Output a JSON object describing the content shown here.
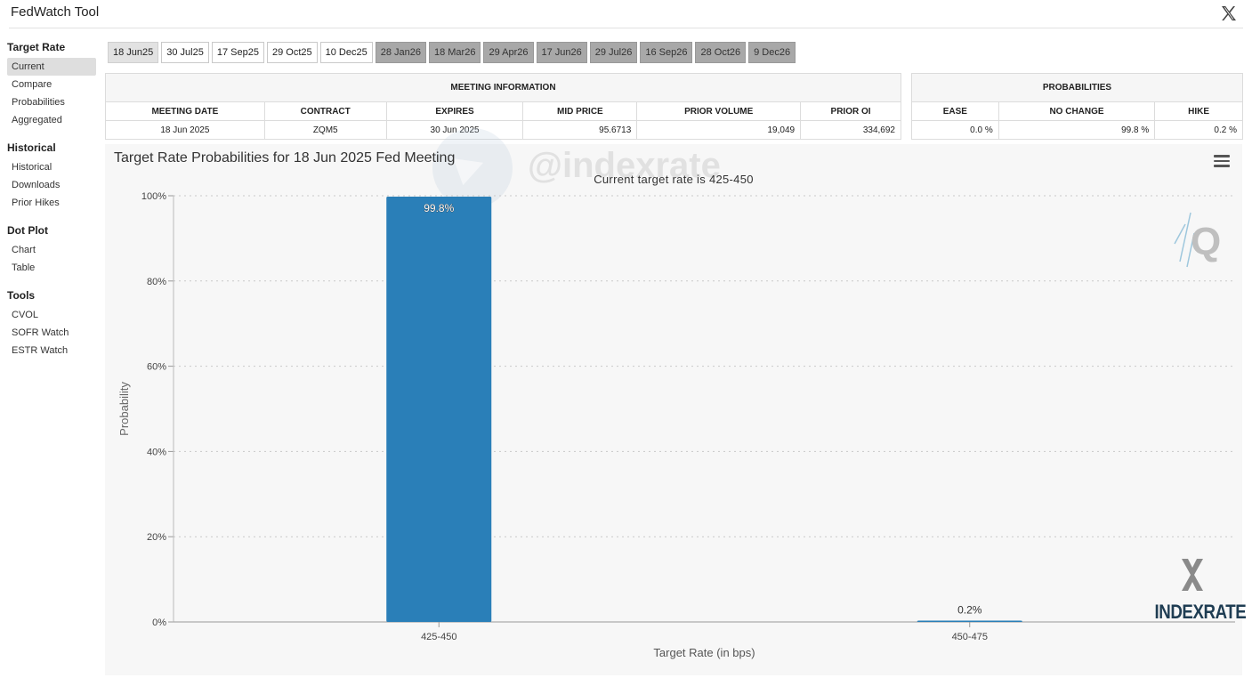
{
  "app": {
    "title": "FedWatch Tool"
  },
  "icons": {
    "close": "x-logo-icon",
    "menu": "hamburger-menu-icon"
  },
  "sidebar": {
    "sections": [
      {
        "heading": "Target Rate",
        "items": [
          {
            "label": "Current",
            "active": true
          },
          {
            "label": "Compare"
          },
          {
            "label": "Probabilities"
          },
          {
            "label": "Aggregated"
          }
        ]
      },
      {
        "heading": "Historical",
        "items": [
          {
            "label": "Historical"
          },
          {
            "label": "Downloads"
          },
          {
            "label": "Prior Hikes"
          }
        ]
      },
      {
        "heading": "Dot Plot",
        "items": [
          {
            "label": "Chart"
          },
          {
            "label": "Table"
          }
        ]
      },
      {
        "heading": "Tools",
        "items": [
          {
            "label": "CVOL"
          },
          {
            "label": "SOFR Watch"
          },
          {
            "label": "ESTR Watch"
          }
        ]
      }
    ]
  },
  "meeting_tabs": [
    {
      "label": "18 Jun25",
      "state": "selected"
    },
    {
      "label": "30 Jul25",
      "state": "normal"
    },
    {
      "label": "17 Sep25",
      "state": "normal"
    },
    {
      "label": "29 Oct25",
      "state": "normal"
    },
    {
      "label": "10 Dec25",
      "state": "normal"
    },
    {
      "label": "28 Jan26",
      "state": "future"
    },
    {
      "label": "18 Mar26",
      "state": "future"
    },
    {
      "label": "29 Apr26",
      "state": "future"
    },
    {
      "label": "17 Jun26",
      "state": "future"
    },
    {
      "label": "29 Jul26",
      "state": "future"
    },
    {
      "label": "16 Sep26",
      "state": "future"
    },
    {
      "label": "28 Oct26",
      "state": "future"
    },
    {
      "label": "9 Dec26",
      "state": "future"
    }
  ],
  "meeting_info": {
    "heading": "MEETING INFORMATION",
    "columns": [
      "MEETING DATE",
      "CONTRACT",
      "EXPIRES",
      "MID PRICE",
      "PRIOR VOLUME",
      "PRIOR OI"
    ],
    "row": [
      "18 Jun 2025",
      "ZQM5",
      "30 Jun 2025",
      "95.6713",
      "19,049",
      "334,692"
    ]
  },
  "probabilities": {
    "heading": "PROBABILITIES",
    "columns": [
      "EASE",
      "NO CHANGE",
      "HIKE"
    ],
    "row": [
      "0.0 %",
      "99.8 %",
      "0.2 %"
    ]
  },
  "watermark": {
    "text": "@indexrate",
    "brand": "INDEXRATE"
  },
  "chart": {
    "title": "Target Rate Probabilities for 18 Jun 2025 Fed Meeting",
    "subtitle": "Current target rate is 425-450"
  },
  "chart_data": {
    "type": "bar",
    "title": "Target Rate Probabilities for 18 Jun 2025 Fed Meeting",
    "subtitle": "Current target rate is 425-450",
    "categories": [
      "425-450",
      "450-475"
    ],
    "values": [
      99.8,
      0.2
    ],
    "data_labels": [
      "99.8%",
      "0.2%"
    ],
    "xlabel": "Target Rate (in bps)",
    "ylabel": "Probability",
    "ylim": [
      0,
      100
    ],
    "yticks": [
      "0%",
      "20%",
      "40%",
      "60%",
      "80%",
      "100%"
    ],
    "grid": true,
    "bar_color": "#2a7fb8"
  }
}
